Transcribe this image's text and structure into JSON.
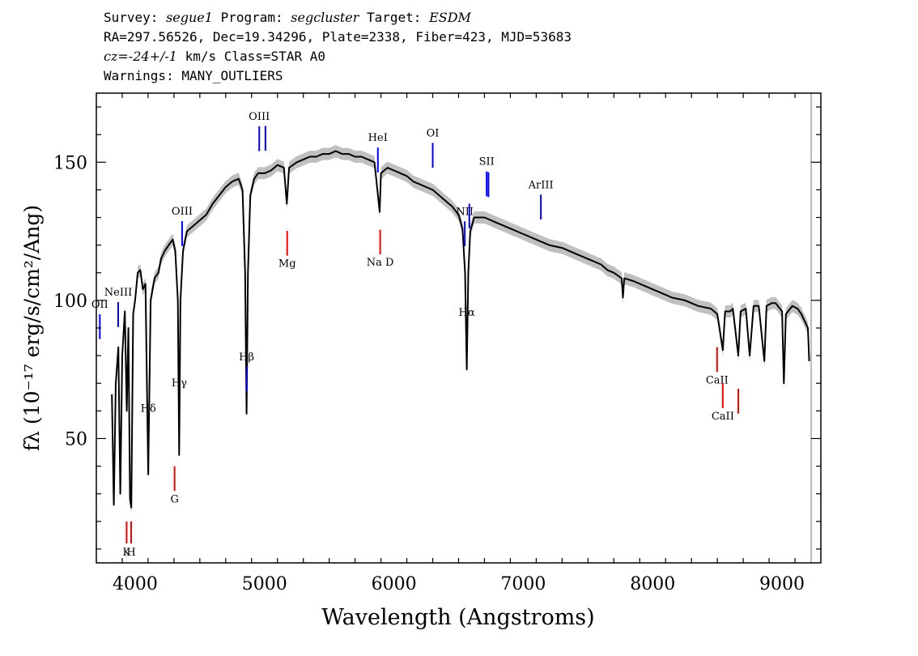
{
  "header": {
    "survey_label": "Survey:",
    "survey": "segue1",
    "program_label": "Program:",
    "program": "segcluster",
    "target_label": "Target:",
    "target": "ESDM",
    "line2": "RA=297.56526, Dec=19.34296, Plate=2338, Fiber=423, MJD=53683",
    "cz_prefix": "cz=",
    "cz_value": "-24+/-1",
    "cz_suffix": " km/s Class=STAR A0",
    "line4": "Warnings: MANY_OUTLIERS"
  },
  "chart_data": {
    "type": "line",
    "xlabel": "Wavelength (Angstroms)",
    "ylabel": "fλ (10⁻¹⁷ erg/s/cm²/Ang)",
    "xlim": [
      3700,
      9300
    ],
    "ylim": [
      5,
      175
    ],
    "x_ticks": [
      4000,
      5000,
      6000,
      7000,
      8000,
      9000
    ],
    "y_ticks": [
      50,
      100,
      150
    ],
    "grid": false,
    "series": [
      {
        "color": "#000000",
        "points": [
          [
            3820,
            66
          ],
          [
            3835,
            26
          ],
          [
            3850,
            70
          ],
          [
            3870,
            83
          ],
          [
            3885,
            30
          ],
          [
            3900,
            80
          ],
          [
            3920,
            96
          ],
          [
            3935,
            60
          ],
          [
            3948,
            90
          ],
          [
            3960,
            28
          ],
          [
            3970,
            25
          ],
          [
            3985,
            95
          ],
          [
            4000,
            100
          ],
          [
            4020,
            110
          ],
          [
            4040,
            111
          ],
          [
            4060,
            104
          ],
          [
            4080,
            106
          ],
          [
            4101,
            37
          ],
          [
            4120,
            100
          ],
          [
            4150,
            108
          ],
          [
            4180,
            110
          ],
          [
            4200,
            115
          ],
          [
            4230,
            118
          ],
          [
            4260,
            120
          ],
          [
            4290,
            122
          ],
          [
            4310,
            118
          ],
          [
            4330,
            100
          ],
          [
            4340,
            44
          ],
          [
            4350,
            100
          ],
          [
            4370,
            118
          ],
          [
            4400,
            125
          ],
          [
            4450,
            127
          ],
          [
            4500,
            129
          ],
          [
            4550,
            131
          ],
          [
            4600,
            135
          ],
          [
            4650,
            138
          ],
          [
            4700,
            141
          ],
          [
            4750,
            143
          ],
          [
            4800,
            144
          ],
          [
            4830,
            140
          ],
          [
            4850,
            110
          ],
          [
            4861,
            59
          ],
          [
            4872,
            110
          ],
          [
            4890,
            138
          ],
          [
            4920,
            144
          ],
          [
            4950,
            146
          ],
          [
            5000,
            146
          ],
          [
            5050,
            147
          ],
          [
            5100,
            149
          ],
          [
            5150,
            148
          ],
          [
            5172,
            135
          ],
          [
            5190,
            148
          ],
          [
            5250,
            150
          ],
          [
            5300,
            151
          ],
          [
            5350,
            152
          ],
          [
            5400,
            152
          ],
          [
            5450,
            153
          ],
          [
            5500,
            153
          ],
          [
            5550,
            154
          ],
          [
            5600,
            153
          ],
          [
            5650,
            153
          ],
          [
            5700,
            152
          ],
          [
            5750,
            152
          ],
          [
            5800,
            151
          ],
          [
            5850,
            150
          ],
          [
            5890,
            132
          ],
          [
            5900,
            146
          ],
          [
            5950,
            148
          ],
          [
            6000,
            147
          ],
          [
            6050,
            146
          ],
          [
            6100,
            145
          ],
          [
            6150,
            143
          ],
          [
            6200,
            142
          ],
          [
            6250,
            141
          ],
          [
            6300,
            140
          ],
          [
            6350,
            138
          ],
          [
            6400,
            136
          ],
          [
            6450,
            134
          ],
          [
            6500,
            131
          ],
          [
            6530,
            126
          ],
          [
            6550,
            110
          ],
          [
            6563,
            75
          ],
          [
            6575,
            110
          ],
          [
            6590,
            125
          ],
          [
            6620,
            130
          ],
          [
            6700,
            130
          ],
          [
            6800,
            128
          ],
          [
            6900,
            126
          ],
          [
            7000,
            124
          ],
          [
            7100,
            122
          ],
          [
            7200,
            120
          ],
          [
            7300,
            119
          ],
          [
            7400,
            117
          ],
          [
            7500,
            115
          ],
          [
            7600,
            113
          ],
          [
            7650,
            111
          ],
          [
            7700,
            110
          ],
          [
            7760,
            108
          ],
          [
            7770,
            101
          ],
          [
            7780,
            108
          ],
          [
            7850,
            107
          ],
          [
            7950,
            105
          ],
          [
            8050,
            103
          ],
          [
            8150,
            101
          ],
          [
            8250,
            100
          ],
          [
            8350,
            98
          ],
          [
            8450,
            97
          ],
          [
            8500,
            95
          ],
          [
            8542,
            82
          ],
          [
            8560,
            96
          ],
          [
            8600,
            96
          ],
          [
            8620,
            97
          ],
          [
            8662,
            80
          ],
          [
            8680,
            96
          ],
          [
            8720,
            97
          ],
          [
            8750,
            80
          ],
          [
            8780,
            98
          ],
          [
            8820,
            98
          ],
          [
            8863,
            78
          ],
          [
            8880,
            98
          ],
          [
            8920,
            99
          ],
          [
            8950,
            99
          ],
          [
            9000,
            96
          ],
          [
            9014,
            70
          ],
          [
            9030,
            95
          ],
          [
            9080,
            98
          ],
          [
            9120,
            97
          ],
          [
            9150,
            95
          ],
          [
            9180,
            92
          ],
          [
            9200,
            90
          ],
          [
            9210,
            78
          ]
        ]
      }
    ],
    "line_markers": [
      {
        "label": "OII",
        "wavelength": 3727,
        "color": "#0000ff",
        "row": "top"
      },
      {
        "label": "NeIII",
        "wavelength": 3869,
        "color": "#0000ff",
        "row": "top"
      },
      {
        "label": "Hδ",
        "wavelength": 4102,
        "color": "#000000",
        "row": "top"
      },
      {
        "label": "Hγ",
        "wavelength": 4341,
        "color": "#000000",
        "row": "top"
      },
      {
        "label": "OIII",
        "wavelength": 4363,
        "color": "#0000ff",
        "row": "top"
      },
      {
        "label": "Hβ",
        "wavelength": 4861,
        "color": "#0000ff",
        "row": "top"
      },
      {
        "label": "OIII",
        "wavelength": 4959,
        "color": "#0000ff",
        "row": "top"
      },
      {
        "label": "OIII",
        "wavelength": 5007,
        "color": "#0000ff",
        "row": "top"
      },
      {
        "label": "HeI",
        "wavelength": 5876,
        "color": "#0000ff",
        "row": "top"
      },
      {
        "label": "OI",
        "wavelength": 6300,
        "color": "#0000ff",
        "row": "top"
      },
      {
        "label": "NII",
        "wavelength": 6548,
        "color": "#0000ff",
        "row": "top"
      },
      {
        "label": "Hα",
        "wavelength": 6563,
        "color": "#000000",
        "row": "top"
      },
      {
        "label": "NII",
        "wavelength": 6583,
        "color": "#0000ff",
        "row": "top"
      },
      {
        "label": "SII",
        "wavelength": 6717,
        "color": "#0000ff",
        "row": "top"
      },
      {
        "label": "SII",
        "wavelength": 6731,
        "color": "#0000ff",
        "row": "top"
      },
      {
        "label": "ArIII",
        "wavelength": 7136,
        "color": "#0000ff",
        "row": "top"
      },
      {
        "label": "K",
        "wavelength": 3934,
        "color": "#ff0000",
        "row": "bottom"
      },
      {
        "label": "H",
        "wavelength": 3969,
        "color": "#ff0000",
        "row": "bottom"
      },
      {
        "label": "G",
        "wavelength": 4305,
        "color": "#ff0000",
        "row": "bottom"
      },
      {
        "label": "Mg",
        "wavelength": 5175,
        "color": "#ff0000",
        "row": "bottom"
      },
      {
        "label": "Na D",
        "wavelength": 5894,
        "color": "#ff0000",
        "row": "bottom"
      },
      {
        "label": "CaII",
        "wavelength": 8498,
        "color": "#ff0000",
        "row": "bottom"
      },
      {
        "label": "CaII",
        "wavelength": 8542,
        "color": "#ff0000",
        "row": "bottom"
      },
      {
        "label": "CaII",
        "wavelength": 8662,
        "color": "#ff0000",
        "row": "bottom"
      }
    ],
    "marker_colors": {
      "emission": "#0000ff",
      "absorption": "#ff0000",
      "balmer": "#000000",
      "error_band": "#b0b0b0"
    }
  }
}
